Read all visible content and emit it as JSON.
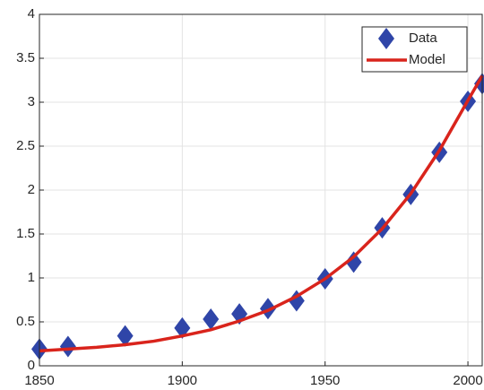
{
  "chart_data": {
    "type": "scatter-line",
    "xlim": [
      1850,
      2005
    ],
    "ylim": [
      0,
      4
    ],
    "xticks": [
      1850,
      1900,
      1950,
      2000
    ],
    "yticks": [
      0,
      0.5,
      1,
      1.5,
      2,
      2.5,
      3,
      3.5,
      4
    ],
    "grid": true,
    "legend": "top-right",
    "series": [
      {
        "name": "Data",
        "kind": "scatter",
        "color": "#2f45a8",
        "x": [
          1850,
          1860,
          1880,
          1900,
          1910,
          1920,
          1930,
          1940,
          1950,
          1960,
          1970,
          1980,
          1990,
          2000,
          2005
        ],
        "values": [
          0.19,
          0.22,
          0.34,
          0.43,
          0.53,
          0.59,
          0.65,
          0.74,
          0.99,
          1.18,
          1.57,
          1.95,
          2.43,
          3.01,
          3.21
        ]
      },
      {
        "name": "Model",
        "kind": "line",
        "color": "#d9241c",
        "x": [
          1850,
          1860,
          1870,
          1880,
          1890,
          1900,
          1910,
          1920,
          1930,
          1940,
          1950,
          1960,
          1970,
          1980,
          1990,
          2000,
          2005
        ],
        "values": [
          0.17,
          0.19,
          0.21,
          0.24,
          0.28,
          0.34,
          0.41,
          0.51,
          0.63,
          0.79,
          0.99,
          1.24,
          1.56,
          1.96,
          2.45,
          3.02,
          3.3
        ]
      }
    ]
  }
}
